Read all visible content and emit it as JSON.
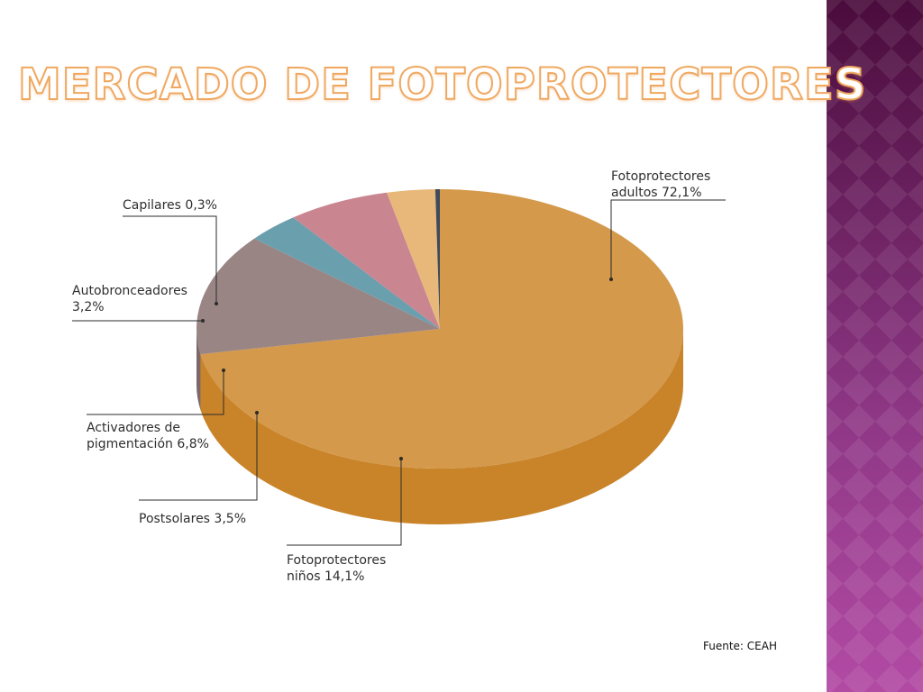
{
  "slide": {
    "title": "MERCADO DE FOTOPROTECTORES",
    "source": "Fuente: CEAH"
  },
  "theme": {
    "title_color": "#f0a860",
    "side_panel_colors": [
      "#4a0c3c",
      "#b24aa4"
    ]
  },
  "chart_data": {
    "type": "pie",
    "title": "",
    "unit": "%",
    "slices": [
      {
        "label": "Fotoprotectores adultos",
        "value": 72.1,
        "label_lines": [
          "Fotoprotectores",
          "adultos 72,1%"
        ],
        "color": "#d4994a",
        "side_color": "#c9842a"
      },
      {
        "label": "Fotoprotectores niños",
        "value": 14.1,
        "label_lines": [
          "Fotoprotectores",
          "niños 14,1%"
        ],
        "color": "#9a8585",
        "side_color": "#7d6769"
      },
      {
        "label": "Postsolares",
        "value": 3.5,
        "label_lines": [
          "Postsolares 3,5%"
        ],
        "color": "#6a9fae",
        "side_color": "#4f8798"
      },
      {
        "label": "Activadores de pigmentación",
        "value": 6.8,
        "label_lines": [
          "Activadores de",
          "pigmentación 6,8%"
        ],
        "color": "#c98590",
        "side_color": "#b8646f"
      },
      {
        "label": "Autobronceadores",
        "value": 3.2,
        "label_lines": [
          "Autobronceadores",
          "3,2%"
        ],
        "color": "#e8b87a",
        "side_color": "#d9a25f"
      },
      {
        "label": "Capilares",
        "value": 0.3,
        "label_lines": [
          "Capilares 0,3%"
        ],
        "color": "#3f4a5a",
        "side_color": "#2d3542"
      }
    ]
  }
}
